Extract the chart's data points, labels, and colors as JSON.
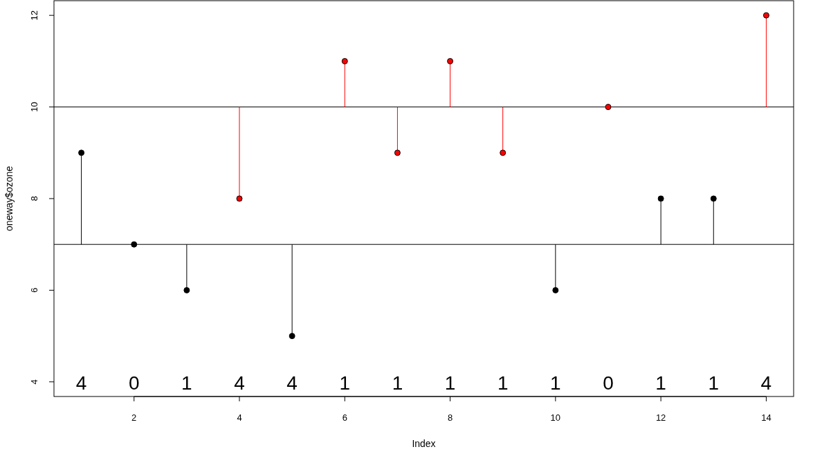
{
  "chart_data": {
    "type": "scatter",
    "xlabel": "Index",
    "ylabel": "oneway$ozone",
    "xlim": [
      0.48,
      14.52
    ],
    "ylim": [
      3.68,
      12.32
    ],
    "xticks": [
      2,
      4,
      6,
      8,
      10,
      12,
      14
    ],
    "yticks": [
      4,
      6,
      8,
      10,
      12
    ],
    "marker": "circle",
    "grid": false,
    "series": [
      {
        "color": "#000000",
        "x": [
          1,
          2,
          3,
          5,
          10,
          12,
          13
        ],
        "values": [
          9,
          7,
          6,
          5,
          6,
          8,
          8
        ],
        "errors": [
          [
            7,
            9
          ],
          null,
          [
            6,
            7
          ],
          [
            5,
            7
          ],
          [
            6,
            7
          ],
          [
            7,
            8
          ],
          [
            7,
            8
          ]
        ]
      },
      {
        "color": "#ff0000",
        "x": [
          4,
          6,
          7,
          8,
          9,
          11,
          14
        ],
        "values": [
          8,
          11,
          9,
          11,
          9,
          10,
          12
        ],
        "errors": [
          [
            8,
            10
          ],
          [
            10,
            11
          ],
          [
            9,
            10
          ],
          [
            10,
            11
          ],
          [
            9,
            10
          ],
          null,
          [
            10,
            12
          ]
        ]
      }
    ],
    "ref_lines": [
      {
        "axis": "y",
        "value": 7,
        "color": "#000000"
      },
      {
        "axis": "y",
        "value": 10,
        "color": "#000000"
      }
    ],
    "annotations": [
      "4",
      "0",
      "1",
      "4",
      "4",
      "1",
      "1",
      "1",
      "1",
      "1",
      "0",
      "1",
      "1",
      "4"
    ]
  }
}
